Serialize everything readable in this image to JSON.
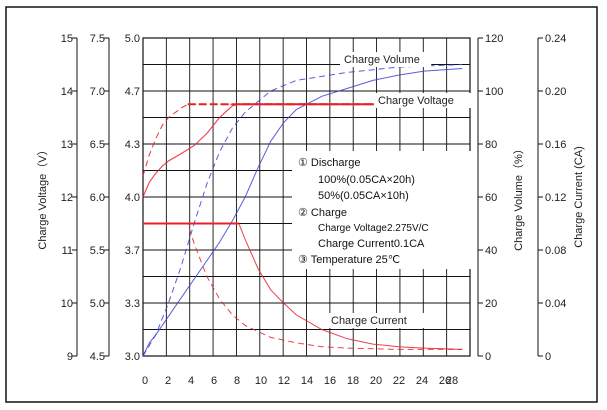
{
  "chart_data": {
    "type": "line",
    "x": {
      "ticks": [
        "0",
        "2",
        "4",
        "6",
        "8",
        "10",
        "12",
        "14",
        "16",
        "18",
        "20",
        "22",
        "24",
        "26",
        "28"
      ],
      "lim": [
        0,
        25.6
      ]
    },
    "axes": {
      "charge_voltage_axis": {
        "title": "Charge Voltage（V）",
        "ticks": [
          "9",
          "10",
          "11",
          "12",
          "13",
          "14",
          "15"
        ]
      },
      "cell_voltage_axis_a": {
        "ticks": [
          "4.5",
          "5.0",
          "5.5",
          "6.0",
          "6.5",
          "7.0",
          "7.5"
        ]
      },
      "cell_voltage_axis_b": {
        "ticks": [
          "3.0",
          "3.3",
          "3.7",
          "4.0",
          "4.3",
          "4.7",
          "5.0"
        ]
      },
      "charge_volume_axis": {
        "title": "Charge Volume（%）",
        "ticks": [
          "0",
          "20",
          "40",
          "60",
          "80",
          "100",
          "120"
        ]
      },
      "charge_current_axis": {
        "title": "Charge Current (CA)",
        "ticks": [
          "0",
          "0.04",
          "0.08",
          "0.12",
          "0.16",
          "0.20",
          "0.24"
        ]
      }
    },
    "curve_labels": {
      "charge_volume": "Charge Volume",
      "charge_voltage": "Charge Voltage",
      "charge_current": "Charge Current"
    },
    "series": [
      {
        "curve": "charge_voltage",
        "style": "solid",
        "axis": "charge_voltage_axis",
        "points": [
          [
            0,
            12.0
          ],
          [
            0.5,
            12.28
          ],
          [
            1,
            12.45
          ],
          [
            1.5,
            12.58
          ],
          [
            2,
            12.68
          ],
          [
            3,
            12.82
          ],
          [
            4,
            12.97
          ],
          [
            5,
            13.2
          ],
          [
            6,
            13.5
          ],
          [
            7,
            13.72
          ],
          [
            7.5,
            13.75
          ],
          [
            25,
            13.75
          ]
        ]
      },
      {
        "curve": "charge_voltage",
        "style": "dashed",
        "axis": "charge_voltage_axis",
        "points": [
          [
            0,
            12.4
          ],
          [
            0.5,
            12.8
          ],
          [
            1,
            13.1
          ],
          [
            1.5,
            13.35
          ],
          [
            2,
            13.5
          ],
          [
            3,
            13.68
          ],
          [
            3.5,
            13.75
          ],
          [
            25,
            13.75
          ]
        ]
      },
      {
        "curve": "charge_volume",
        "style": "solid",
        "axis": "charge_volume_axis",
        "points": [
          [
            0,
            0
          ],
          [
            0.5,
            5
          ],
          [
            1,
            8
          ],
          [
            2,
            15
          ],
          [
            3,
            22
          ],
          [
            4,
            29
          ],
          [
            5,
            36
          ],
          [
            6,
            43
          ],
          [
            7,
            51
          ],
          [
            8,
            60
          ],
          [
            9,
            71
          ],
          [
            10,
            81
          ],
          [
            11,
            88
          ],
          [
            12,
            93
          ],
          [
            14,
            98
          ],
          [
            16,
            101
          ],
          [
            18,
            104
          ],
          [
            20,
            106
          ],
          [
            22,
            107.5
          ],
          [
            25,
            108.5
          ]
        ]
      },
      {
        "curve": "charge_volume",
        "style": "dashed",
        "axis": "charge_volume_axis",
        "points": [
          [
            0,
            0
          ],
          [
            1,
            8
          ],
          [
            2,
            20
          ],
          [
            3,
            34
          ],
          [
            4,
            50
          ],
          [
            5,
            65
          ],
          [
            6,
            77
          ],
          [
            7,
            86
          ],
          [
            8,
            92
          ],
          [
            10,
            100
          ],
          [
            12,
            104
          ],
          [
            16,
            107
          ],
          [
            20,
            109
          ],
          [
            25,
            110
          ]
        ]
      },
      {
        "curve": "charge_current",
        "style": "solid",
        "axis": "charge_current_axis",
        "points": [
          [
            0,
            0.1
          ],
          [
            7.5,
            0.1
          ],
          [
            8,
            0.088
          ],
          [
            9,
            0.066
          ],
          [
            10,
            0.05
          ],
          [
            11,
            0.04
          ],
          [
            12,
            0.031
          ],
          [
            14,
            0.02
          ],
          [
            16,
            0.013
          ],
          [
            18,
            0.009
          ],
          [
            20,
            0.007
          ],
          [
            22,
            0.006
          ],
          [
            25,
            0.005
          ]
        ]
      },
      {
        "curve": "charge_current",
        "style": "dashed",
        "axis": "charge_current_axis",
        "points": [
          [
            0,
            0.1
          ],
          [
            3.5,
            0.1
          ],
          [
            4,
            0.085
          ],
          [
            5,
            0.06
          ],
          [
            6,
            0.043
          ],
          [
            7,
            0.031
          ],
          [
            8,
            0.023
          ],
          [
            10,
            0.014
          ],
          [
            12,
            0.01
          ],
          [
            14,
            0.007
          ],
          [
            16,
            0.006
          ],
          [
            20,
            0.005
          ],
          [
            25,
            0.005
          ]
        ]
      }
    ],
    "annotation": [
      {
        "text": "①  Discharge",
        "size": "normal"
      },
      {
        "text": "100%(0.05CA×20h)",
        "size": "normal"
      },
      {
        "text": "50%(0.05CA×10h)",
        "size": "normal"
      },
      {
        "text": "②  Charge",
        "size": "normal"
      },
      {
        "text": "Charge Voltage2.275V/C",
        "size": "small"
      },
      {
        "text": "Charge Current0.1CA",
        "size": "normal"
      },
      {
        "text": "③  Temperature 25℃",
        "size": "normal"
      }
    ],
    "grid": true,
    "colors": {
      "voltage": "#e8202a",
      "volume": "#3b41d6",
      "current": "#e8202a"
    }
  }
}
